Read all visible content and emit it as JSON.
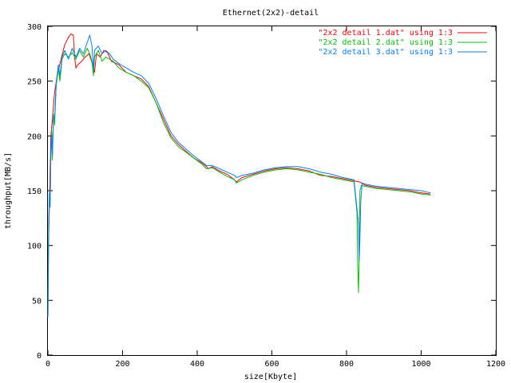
{
  "chart_data": {
    "type": "line",
    "title": "Ethernet(2x2)-detail",
    "xlabel": "size[Kbyte]",
    "ylabel": "throughput[MB/s]",
    "xlim": [
      0,
      1200
    ],
    "ylim": [
      0,
      300
    ],
    "x_ticks": [
      0,
      200,
      400,
      600,
      800,
      1000,
      1200
    ],
    "y_ticks": [
      0,
      50,
      100,
      150,
      200,
      250,
      300
    ],
    "grid": false,
    "legend_position": "top-right",
    "series": [
      {
        "name": "\"2x2 detail 1.dat\" using 1:3",
        "color": "#ff0000",
        "points": [
          [
            0,
            35
          ],
          [
            2,
            105
          ],
          [
            5,
            150
          ],
          [
            8,
            200
          ],
          [
            12,
            215
          ],
          [
            18,
            240
          ],
          [
            25,
            255
          ],
          [
            35,
            270
          ],
          [
            45,
            283
          ],
          [
            55,
            290
          ],
          [
            62,
            293
          ],
          [
            68,
            292
          ],
          [
            72,
            270
          ],
          [
            75,
            262
          ],
          [
            80,
            265
          ],
          [
            90,
            268
          ],
          [
            100,
            272
          ],
          [
            110,
            275
          ],
          [
            115,
            270
          ],
          [
            120,
            265
          ],
          [
            125,
            258
          ],
          [
            130,
            275
          ],
          [
            140,
            272
          ],
          [
            150,
            278
          ],
          [
            160,
            276
          ],
          [
            170,
            268
          ],
          [
            190,
            265
          ],
          [
            210,
            258
          ],
          [
            230,
            255
          ],
          [
            250,
            252
          ],
          [
            270,
            245
          ],
          [
            290,
            230
          ],
          [
            310,
            215
          ],
          [
            330,
            200
          ],
          [
            350,
            192
          ],
          [
            370,
            186
          ],
          [
            390,
            180
          ],
          [
            410,
            176
          ],
          [
            425,
            172
          ],
          [
            430,
            170
          ],
          [
            440,
            172
          ],
          [
            460,
            168
          ],
          [
            480,
            165
          ],
          [
            500,
            160
          ],
          [
            505,
            158
          ],
          [
            520,
            162
          ],
          [
            550,
            165
          ],
          [
            580,
            168
          ],
          [
            610,
            170
          ],
          [
            640,
            171
          ],
          [
            670,
            170
          ],
          [
            700,
            168
          ],
          [
            730,
            164
          ],
          [
            760,
            163
          ],
          [
            790,
            161
          ],
          [
            820,
            159
          ],
          [
            835,
            158
          ],
          [
            850,
            155
          ],
          [
            880,
            153
          ],
          [
            910,
            152
          ],
          [
            940,
            151
          ],
          [
            970,
            150
          ],
          [
            1000,
            148
          ],
          [
            1025,
            147
          ]
        ]
      },
      {
        "name": "\"2x2 detail 2.dat\" using 1:3",
        "color": "#00c000",
        "points": [
          [
            0,
            40
          ],
          [
            2,
            120
          ],
          [
            4,
            148
          ],
          [
            6,
            140
          ],
          [
            8,
            180
          ],
          [
            10,
            205
          ],
          [
            12,
            178
          ],
          [
            15,
            220
          ],
          [
            18,
            210
          ],
          [
            22,
            245
          ],
          [
            28,
            262
          ],
          [
            32,
            250
          ],
          [
            38,
            270
          ],
          [
            45,
            275
          ],
          [
            55,
            272
          ],
          [
            65,
            276
          ],
          [
            75,
            270
          ],
          [
            85,
            278
          ],
          [
            95,
            272
          ],
          [
            105,
            280
          ],
          [
            112,
            275
          ],
          [
            118,
            268
          ],
          [
            122,
            255
          ],
          [
            125,
            272
          ],
          [
            135,
            278
          ],
          [
            145,
            268
          ],
          [
            155,
            272
          ],
          [
            165,
            270
          ],
          [
            175,
            268
          ],
          [
            190,
            262
          ],
          [
            210,
            258
          ],
          [
            230,
            255
          ],
          [
            250,
            250
          ],
          [
            270,
            244
          ],
          [
            290,
            230
          ],
          [
            310,
            212
          ],
          [
            330,
            198
          ],
          [
            350,
            190
          ],
          [
            370,
            185
          ],
          [
            390,
            180
          ],
          [
            410,
            175
          ],
          [
            425,
            170
          ],
          [
            440,
            171
          ],
          [
            460,
            167
          ],
          [
            480,
            163
          ],
          [
            500,
            160
          ],
          [
            505,
            157
          ],
          [
            520,
            160
          ],
          [
            550,
            164
          ],
          [
            580,
            167
          ],
          [
            610,
            169
          ],
          [
            640,
            170
          ],
          [
            670,
            169
          ],
          [
            700,
            167
          ],
          [
            730,
            165
          ],
          [
            760,
            162
          ],
          [
            790,
            160
          ],
          [
            820,
            158
          ],
          [
            828,
            130
          ],
          [
            830,
            82
          ],
          [
            832,
            57
          ],
          [
            834,
            90
          ],
          [
            836,
            150
          ],
          [
            840,
            155
          ],
          [
            850,
            154
          ],
          [
            880,
            152
          ],
          [
            910,
            151
          ],
          [
            940,
            150
          ],
          [
            970,
            149
          ],
          [
            1000,
            147
          ],
          [
            1025,
            146
          ]
        ]
      },
      {
        "name": "\"2x2 detail 3.dat\" using 1:3",
        "color": "#0080ff",
        "points": [
          [
            0,
            35
          ],
          [
            2,
            110
          ],
          [
            4,
            148
          ],
          [
            6,
            135
          ],
          [
            8,
            185
          ],
          [
            10,
            200
          ],
          [
            12,
            182
          ],
          [
            15,
            218
          ],
          [
            18,
            215
          ],
          [
            22,
            248
          ],
          [
            28,
            265
          ],
          [
            32,
            255
          ],
          [
            38,
            272
          ],
          [
            45,
            278
          ],
          [
            55,
            270
          ],
          [
            65,
            280
          ],
          [
            75,
            272
          ],
          [
            85,
            280
          ],
          [
            95,
            275
          ],
          [
            105,
            285
          ],
          [
            112,
            292
          ],
          [
            118,
            282
          ],
          [
            122,
            260
          ],
          [
            125,
            278
          ],
          [
            135,
            282
          ],
          [
            145,
            275
          ],
          [
            155,
            278
          ],
          [
            165,
            275
          ],
          [
            175,
            270
          ],
          [
            190,
            266
          ],
          [
            210,
            262
          ],
          [
            230,
            258
          ],
          [
            250,
            255
          ],
          [
            270,
            248
          ],
          [
            290,
            234
          ],
          [
            310,
            218
          ],
          [
            330,
            203
          ],
          [
            350,
            194
          ],
          [
            370,
            188
          ],
          [
            390,
            182
          ],
          [
            410,
            177
          ],
          [
            425,
            173
          ],
          [
            440,
            173
          ],
          [
            460,
            170
          ],
          [
            480,
            167
          ],
          [
            500,
            164
          ],
          [
            505,
            162
          ],
          [
            520,
            164
          ],
          [
            550,
            166
          ],
          [
            580,
            169
          ],
          [
            610,
            171
          ],
          [
            640,
            172
          ],
          [
            670,
            172
          ],
          [
            700,
            170
          ],
          [
            730,
            167
          ],
          [
            760,
            165
          ],
          [
            790,
            162
          ],
          [
            820,
            160
          ],
          [
            832,
            120
          ],
          [
            834,
            86
          ],
          [
            836,
            107
          ],
          [
            838,
            140
          ],
          [
            842,
            157
          ],
          [
            850,
            156
          ],
          [
            880,
            154
          ],
          [
            910,
            153
          ],
          [
            940,
            152
          ],
          [
            970,
            151
          ],
          [
            1000,
            150
          ],
          [
            1025,
            148
          ]
        ]
      }
    ]
  }
}
